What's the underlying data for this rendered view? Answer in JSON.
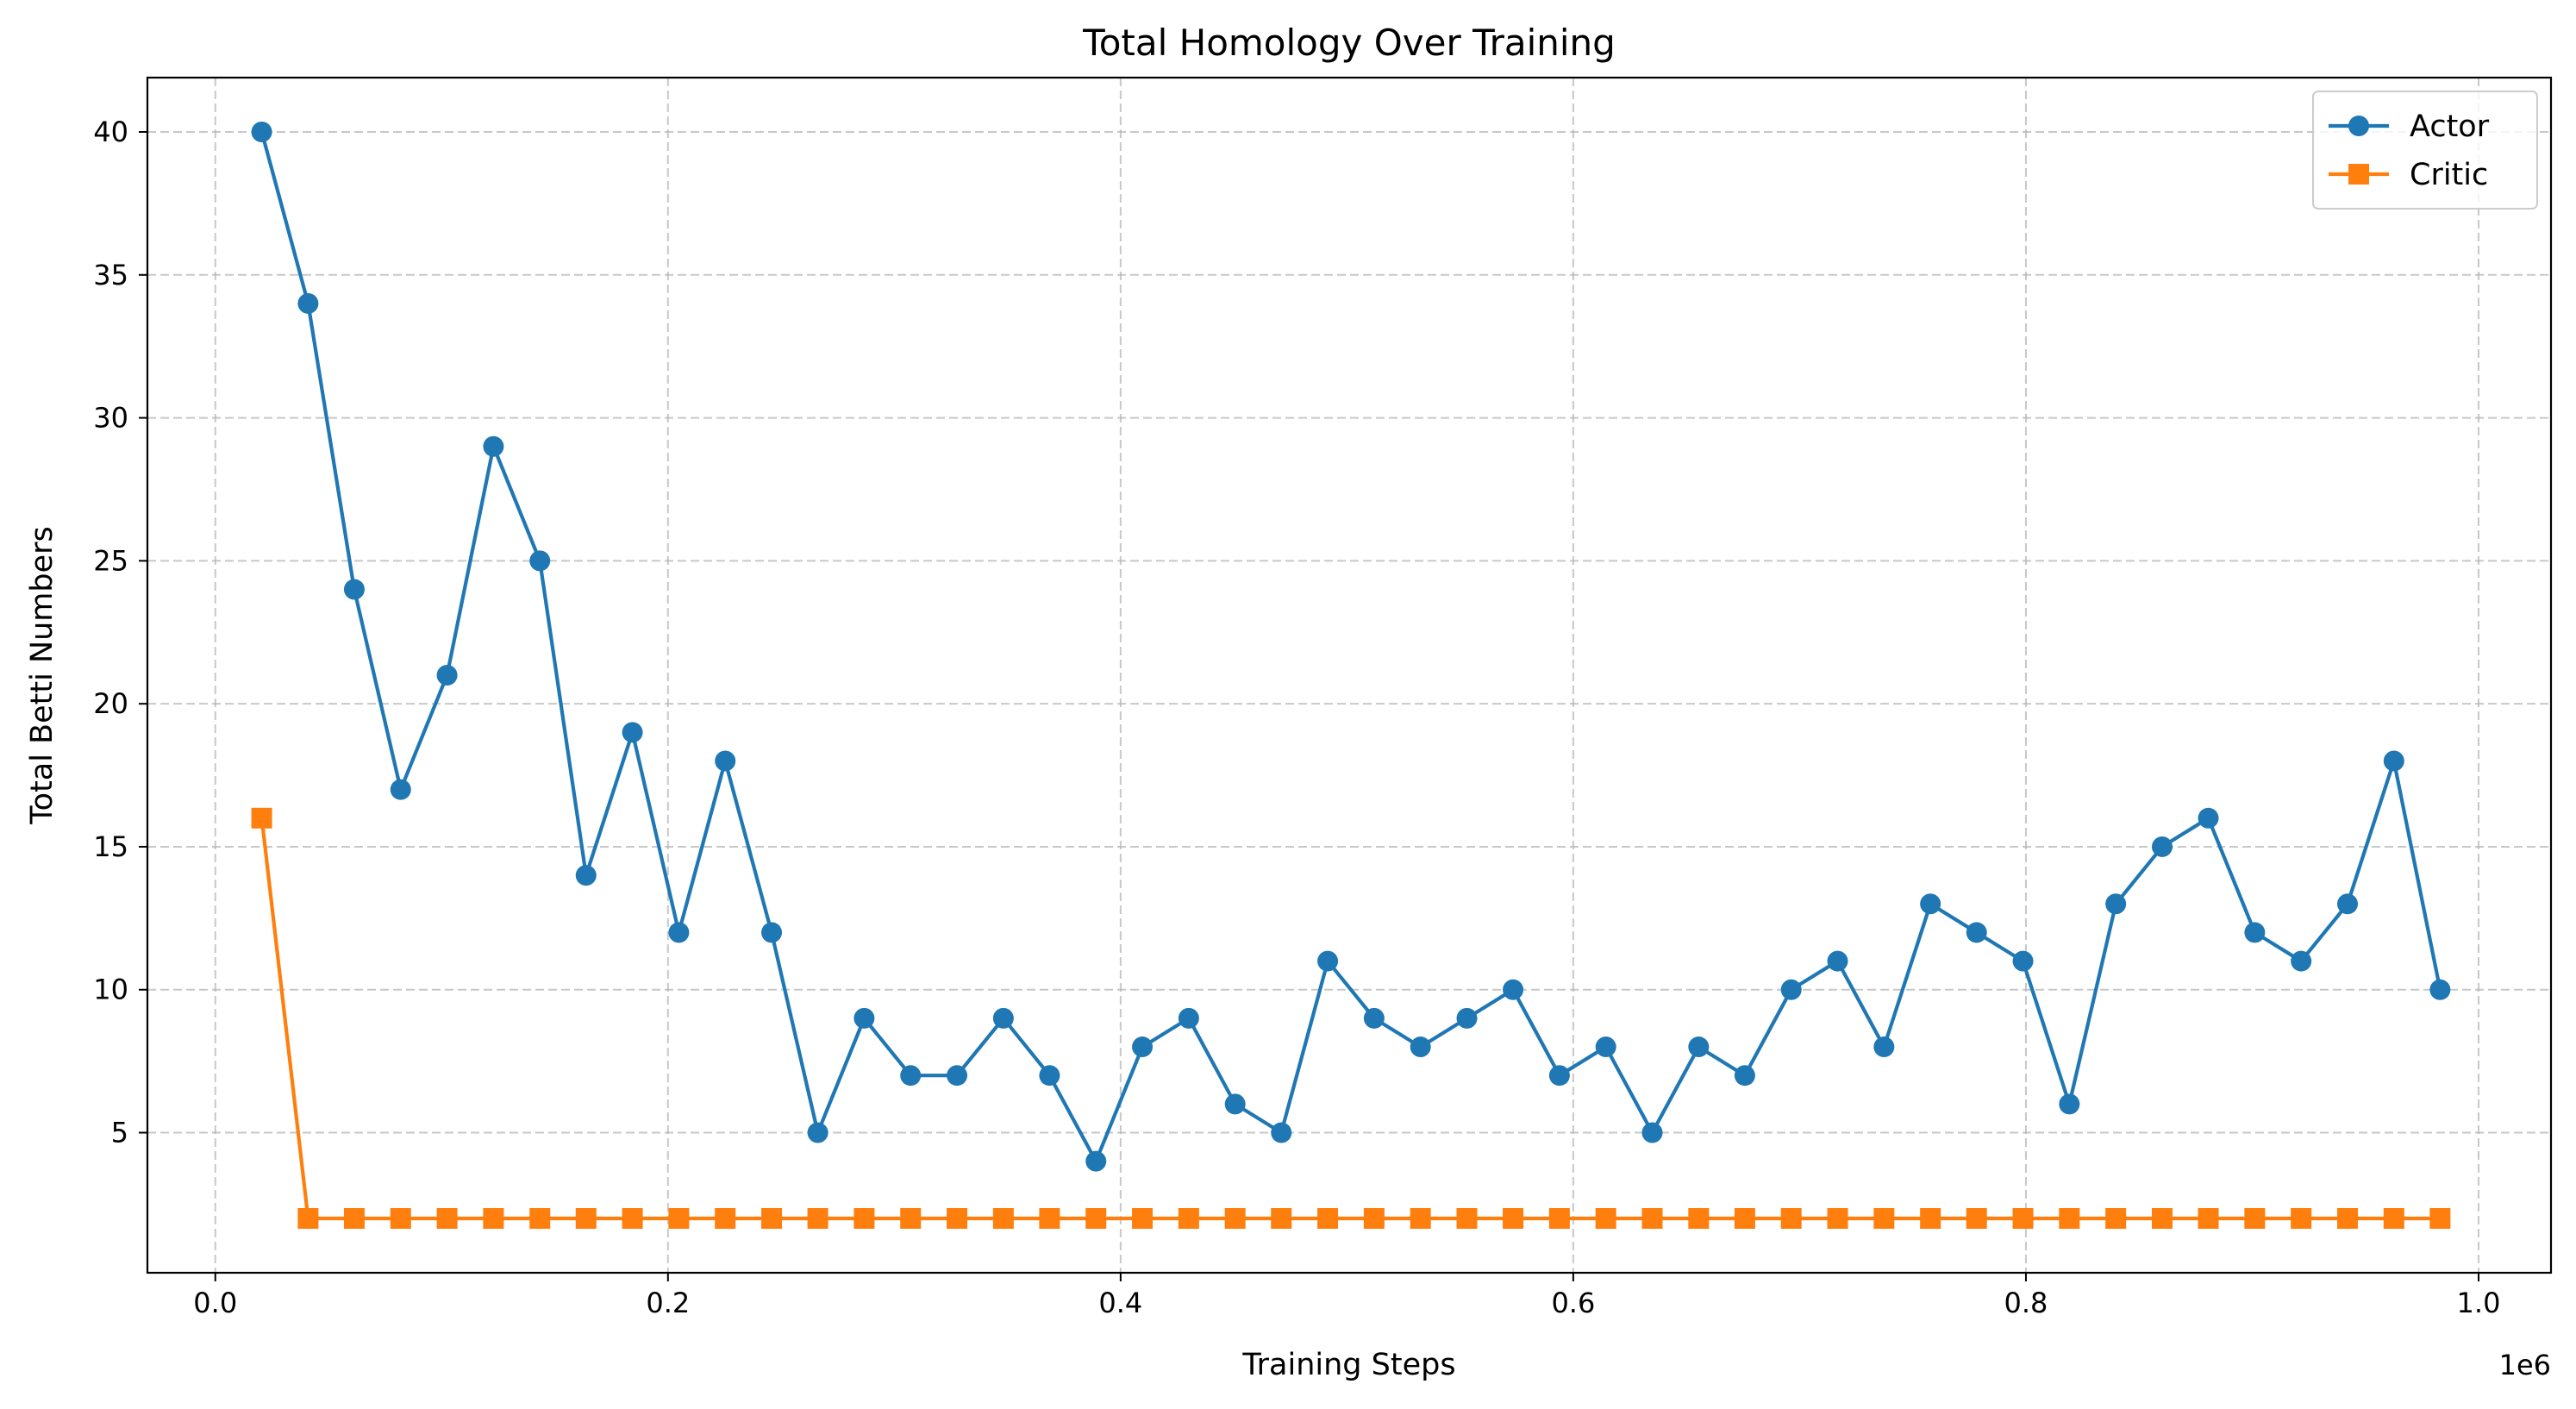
{
  "chart_data": {
    "type": "line",
    "title": "Total Homology Over Training",
    "xlabel": "Training Steps",
    "ylabel": "Total Betti Numbers",
    "x_offset_label": "1e6",
    "xlim": [
      -0.03,
      1.032
    ],
    "ylim": [
      0.1,
      41.9
    ],
    "xticks": [
      0.0,
      0.2,
      0.4,
      0.6,
      0.8,
      1.0
    ],
    "xtick_labels": [
      "0.0",
      "0.2",
      "0.4",
      "0.6",
      "0.8",
      "1.0"
    ],
    "yticks": [
      5,
      10,
      15,
      20,
      25,
      30,
      35,
      40
    ],
    "ytick_labels": [
      "5",
      "10",
      "15",
      "20",
      "25",
      "30",
      "35",
      "40"
    ],
    "grid": true,
    "legend_position": "top-right",
    "x": [
      0.0205,
      0.041,
      0.0614,
      0.0819,
      0.1024,
      0.1229,
      0.1434,
      0.1638,
      0.1843,
      0.2048,
      0.2253,
      0.2458,
      0.2662,
      0.2867,
      0.3072,
      0.3277,
      0.3482,
      0.3686,
      0.3891,
      0.4096,
      0.4301,
      0.4506,
      0.471,
      0.4915,
      0.512,
      0.5325,
      0.553,
      0.5734,
      0.5939,
      0.6144,
      0.6349,
      0.6554,
      0.6758,
      0.6963,
      0.7168,
      0.7373,
      0.7578,
      0.7782,
      0.7987,
      0.8192,
      0.8397,
      0.8602,
      0.8806,
      0.9011,
      0.9216,
      0.9421,
      0.9626,
      0.983
    ],
    "series": [
      {
        "name": "Actor",
        "color": "#1f77b4",
        "marker": "circle",
        "values": [
          40,
          34,
          24,
          17,
          21,
          29,
          25,
          14,
          19,
          12,
          18,
          12,
          5,
          9,
          7,
          7,
          9,
          7,
          4,
          8,
          9,
          6,
          5,
          11,
          9,
          8,
          9,
          10,
          7,
          8,
          5,
          8,
          7,
          10,
          11,
          8,
          13,
          12,
          11,
          6,
          13,
          15,
          16,
          12,
          11,
          13,
          18,
          10
        ]
      },
      {
        "name": "Critic",
        "color": "#ff7f0e",
        "marker": "square",
        "values": [
          16,
          2,
          2,
          2,
          2,
          2,
          2,
          2,
          2,
          2,
          2,
          2,
          2,
          2,
          2,
          2,
          2,
          2,
          2,
          2,
          2,
          2,
          2,
          2,
          2,
          2,
          2,
          2,
          2,
          2,
          2,
          2,
          2,
          2,
          2,
          2,
          2,
          2,
          2,
          2,
          2,
          2,
          2,
          2,
          2,
          2,
          2,
          2
        ]
      }
    ]
  }
}
